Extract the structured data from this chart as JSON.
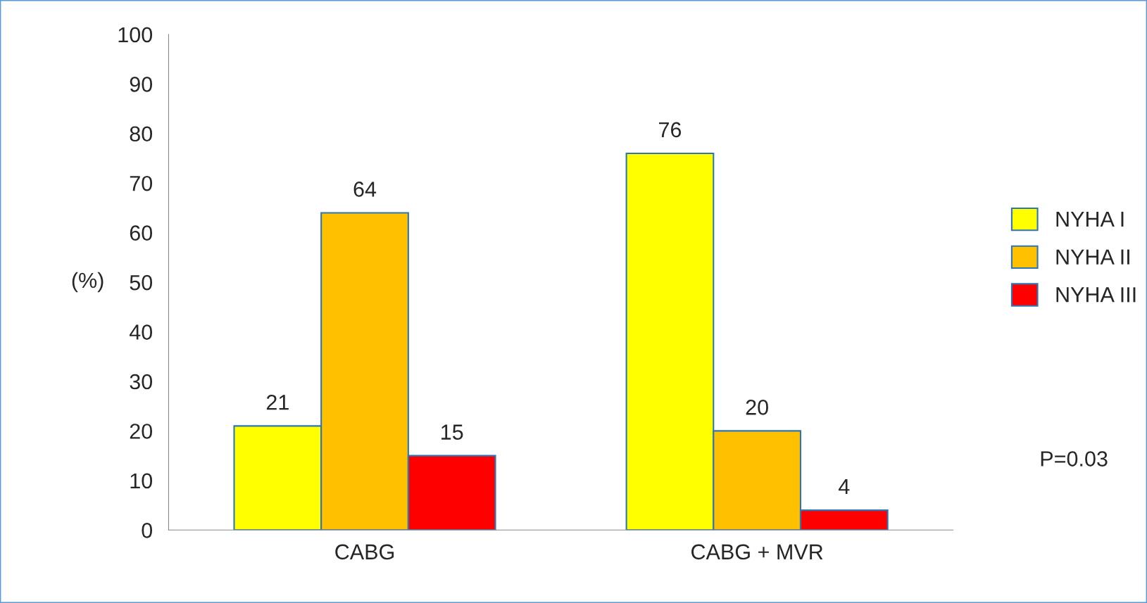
{
  "chart_data": {
    "type": "bar",
    "categories": [
      "CABG",
      "CABG + MVR"
    ],
    "series": [
      {
        "name": "NYHA I",
        "color": "#ffff00",
        "values": [
          21,
          76
        ]
      },
      {
        "name": "NYHA II",
        "color": "#ffc000",
        "values": [
          64,
          20
        ]
      },
      {
        "name": "NYHA III",
        "color": "#ff0000",
        "values": [
          15,
          4
        ]
      }
    ],
    "ylabel": "(%)",
    "ylim": [
      0,
      100
    ],
    "yticks": [
      0,
      10,
      20,
      30,
      40,
      50,
      60,
      70,
      80,
      90,
      100
    ],
    "data_labels": true,
    "legend": "right",
    "grid": false,
    "annotations": [
      "P=0.03"
    ]
  }
}
